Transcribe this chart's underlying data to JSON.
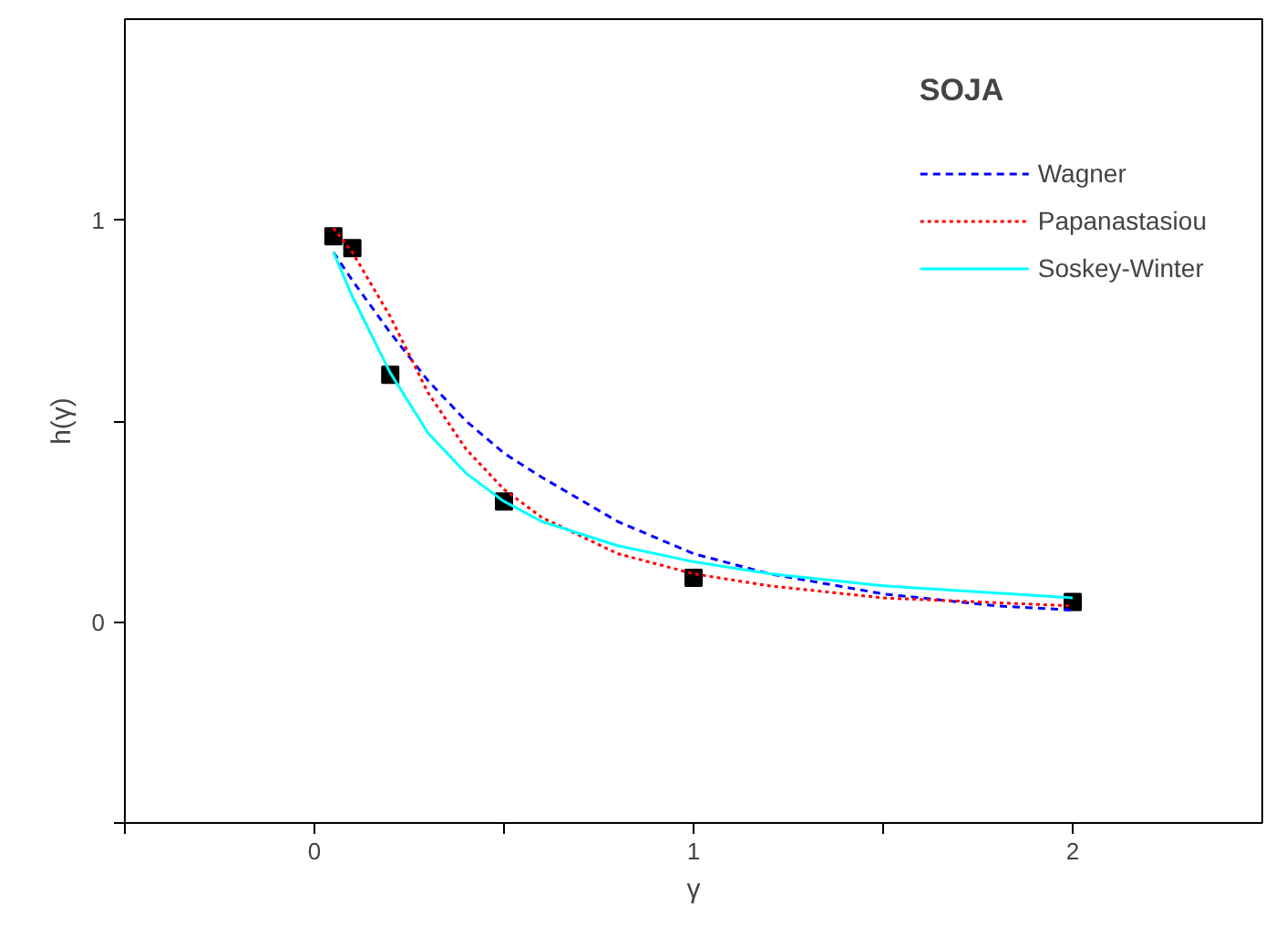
{
  "chart_data": {
    "type": "line",
    "legend_title": "SOJA",
    "xlabel": "γ",
    "ylabel": "h(γ)",
    "xlim": [
      -0.5,
      2.5
    ],
    "ylim": [
      -0.5,
      1.5
    ],
    "xticks": [
      {
        "value": -0.5,
        "label": null
      },
      0,
      {
        "value": 0.5,
        "label": null
      },
      1,
      {
        "value": 1.5,
        "label": null
      },
      2
    ],
    "yticks": [
      {
        "value": -0.5,
        "label": null
      },
      0,
      {
        "value": 0.5,
        "label": null
      },
      1
    ],
    "grid": false,
    "legend": "top right",
    "series": [
      {
        "type": "scatter",
        "color": "#000000",
        "marker": "square",
        "x": [
          0.05,
          0.1,
          0.2,
          0.5,
          1,
          2
        ],
        "values": [
          0.96,
          0.93,
          0.615,
          0.3,
          0.11,
          0.05
        ]
      },
      {
        "name": "Wagner",
        "color": "#0000ff",
        "line_style": "dashed",
        "x": [
          0.05,
          0.1,
          0.2,
          0.3,
          0.4,
          0.5,
          0.6,
          0.8,
          1.0,
          1.2,
          1.5,
          1.8,
          2.0
        ],
        "values": [
          0.92,
          0.85,
          0.72,
          0.6,
          0.5,
          0.42,
          0.36,
          0.25,
          0.17,
          0.12,
          0.07,
          0.04,
          0.03
        ]
      },
      {
        "name": "Papanastasiou",
        "color": "#ff0000",
        "line_style": "dotted",
        "x": [
          0.05,
          0.1,
          0.2,
          0.3,
          0.4,
          0.5,
          0.6,
          0.8,
          1.0,
          1.2,
          1.5,
          2.0
        ],
        "values": [
          0.98,
          0.92,
          0.76,
          0.57,
          0.43,
          0.33,
          0.26,
          0.17,
          0.12,
          0.09,
          0.06,
          0.04
        ]
      },
      {
        "name": "Soskey-Winter",
        "color": "#00ffff",
        "line_style": "solid",
        "x": [
          0.05,
          0.1,
          0.2,
          0.3,
          0.4,
          0.5,
          0.6,
          0.8,
          1.0,
          1.2,
          1.5,
          2.0
        ],
        "values": [
          0.92,
          0.81,
          0.62,
          0.47,
          0.37,
          0.3,
          0.25,
          0.19,
          0.15,
          0.12,
          0.09,
          0.06
        ]
      }
    ]
  }
}
